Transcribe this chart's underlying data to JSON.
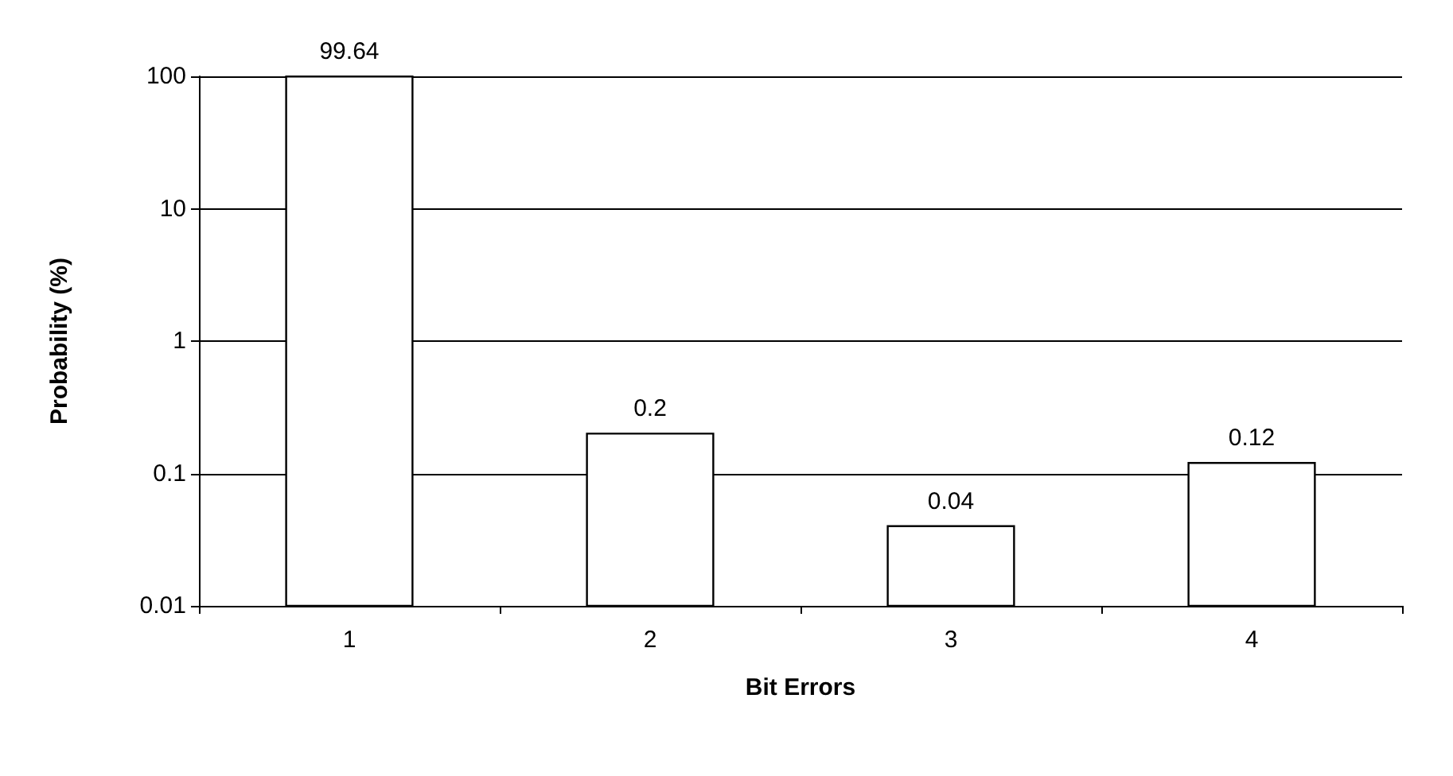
{
  "chart_data": {
    "type": "bar",
    "xlabel": "Bit Errors",
    "ylabel": "Probability (%)",
    "categories": [
      "1",
      "2",
      "3",
      "4"
    ],
    "values": [
      99.64,
      0.2,
      0.04,
      0.12
    ],
    "color": "#ffffff",
    "log": "y",
    "ylim": [
      0.01,
      100
    ],
    "yticks": [
      0.01,
      0.1,
      1,
      10,
      100
    ],
    "grid": "y",
    "data_labels": true
  }
}
